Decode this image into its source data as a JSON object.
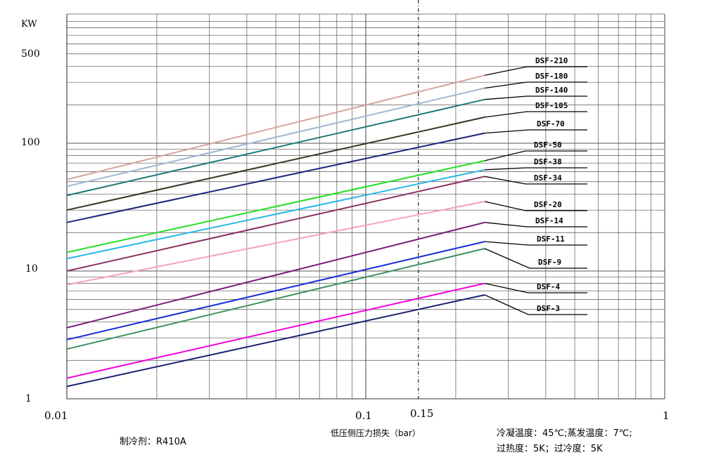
{
  "chart_data": {
    "type": "line",
    "x_scale": "log",
    "y_scale": "log",
    "xlim": [
      0.01,
      1
    ],
    "ylim": [
      1,
      700
    ],
    "ylabel": "KW",
    "y_ticks": [
      "1",
      "10",
      "100",
      "500"
    ],
    "x_ticks": [
      "0.01",
      "0.1",
      "0.15",
      "1"
    ],
    "xlabel": "低压侧压力损失（bar）",
    "grid": true,
    "reference_line_x": 0.15,
    "series": [
      {
        "name": "DSF-210",
        "color": "#D4A3A0",
        "x": [
          0.01,
          0.25
        ],
        "y": [
          52,
          340
        ]
      },
      {
        "name": "DSF-180",
        "color": "#A0B6D0",
        "x": [
          0.01,
          0.25
        ],
        "y": [
          46,
          270
        ]
      },
      {
        "name": "DSF-140",
        "color": "#1E7A78",
        "x": [
          0.01,
          0.25
        ],
        "y": [
          39,
          220
        ]
      },
      {
        "name": "DSF-105",
        "color": "#2F3A20",
        "x": [
          0.01,
          0.25
        ],
        "y": [
          30,
          160
        ]
      },
      {
        "name": "DSF-70",
        "color": "#1A237E",
        "x": [
          0.01,
          0.25
        ],
        "y": [
          24,
          120
        ]
      },
      {
        "name": "DSF-50",
        "color": "#22E022",
        "x": [
          0.01,
          0.25
        ],
        "y": [
          14,
          73
        ]
      },
      {
        "name": "DSF-38",
        "color": "#28B8E8",
        "x": [
          0.01,
          0.25
        ],
        "y": [
          12.5,
          62
        ]
      },
      {
        "name": "DSF-34",
        "color": "#8B3060",
        "x": [
          0.01,
          0.25
        ],
        "y": [
          10,
          55
        ]
      },
      {
        "name": "DSF-20",
        "color": "#F4A0C8",
        "x": [
          0.01,
          0.25
        ],
        "y": [
          7.8,
          35
        ]
      },
      {
        "name": "DSF-14",
        "color": "#7B1A7A",
        "x": [
          0.01,
          0.25
        ],
        "y": [
          3.6,
          24
        ]
      },
      {
        "name": "DSF-11",
        "color": "#1A2ED8",
        "x": [
          0.01,
          0.25
        ],
        "y": [
          2.9,
          17
        ]
      },
      {
        "name": "DSF-9",
        "color": "#3E9060",
        "x": [
          0.01,
          0.25
        ],
        "y": [
          2.45,
          15
        ]
      },
      {
        "name": "DSF-4",
        "color": "#F000E0",
        "x": [
          0.01,
          0.25
        ],
        "y": [
          1.45,
          8
        ]
      },
      {
        "name": "DSF-3",
        "color": "#1A2070",
        "x": [
          0.01,
          0.25
        ],
        "y": [
          1.25,
          6.5
        ]
      }
    ]
  },
  "notes": {
    "refrigerant": "制冷剂：R410A",
    "condition_line1": "冷凝温度：45℃;蒸发温度：7℃;",
    "condition_line2": "过热度：5K；过冷度：5K"
  }
}
